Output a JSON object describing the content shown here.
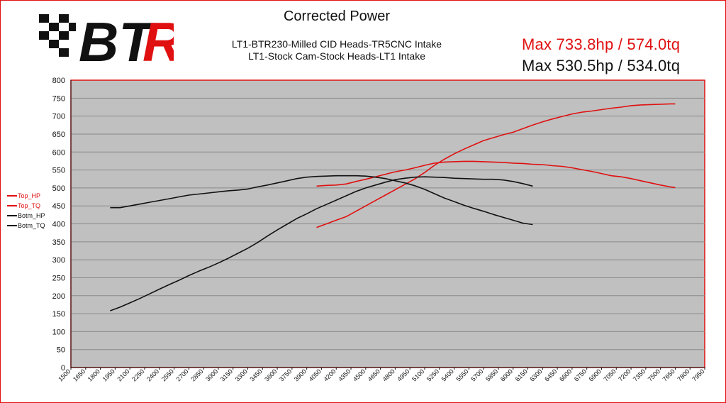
{
  "header": {
    "title": "Corrected Power",
    "subtitle_1": "LT1-BTR230-Milled CID Heads-TR5CNC Intake",
    "subtitle_2": "LT1-Stock Cam-Stock Heads-LT1 Intake",
    "max_top": "Max 733.8hp / 574.0tq",
    "max_bottom": "Max 530.5hp / 534.0tq"
  },
  "logo": {
    "text": "BTR",
    "colors": {
      "black": "#111111",
      "red": "#e01010"
    }
  },
  "colors": {
    "red": "#e01010",
    "black": "#111111",
    "plot_bg": "#c0c0c0",
    "grid": "#8a8a8a"
  },
  "chart_data": {
    "type": "line",
    "title": "Corrected Power",
    "xlabel": "",
    "ylabel": "",
    "xlim": [
      1500,
      7950
    ],
    "ylim": [
      0,
      800
    ],
    "x_ticks": [
      1500,
      1650,
      1800,
      1950,
      2100,
      2250,
      2400,
      2550,
      2700,
      2850,
      3000,
      3150,
      3300,
      3450,
      3600,
      3750,
      3900,
      4050,
      4200,
      4350,
      4500,
      4650,
      4800,
      4950,
      5100,
      5250,
      5400,
      5550,
      5700,
      5850,
      6000,
      6150,
      6300,
      6450,
      6600,
      6750,
      6900,
      7050,
      7200,
      7350,
      7500,
      7650,
      7800,
      7950
    ],
    "y_ticks": [
      0,
      50,
      100,
      150,
      200,
      250,
      300,
      350,
      400,
      450,
      500,
      550,
      600,
      650,
      700,
      750,
      800
    ],
    "grid": true,
    "legend_position": "left",
    "series": [
      {
        "name": "Top_HP",
        "color": "#e01010",
        "points": [
          [
            4000,
            390
          ],
          [
            4100,
            400
          ],
          [
            4200,
            410
          ],
          [
            4300,
            420
          ],
          [
            4400,
            435
          ],
          [
            4500,
            450
          ],
          [
            4600,
            465
          ],
          [
            4700,
            480
          ],
          [
            4800,
            495
          ],
          [
            4900,
            510
          ],
          [
            5000,
            525
          ],
          [
            5100,
            543
          ],
          [
            5200,
            563
          ],
          [
            5300,
            580
          ],
          [
            5400,
            595
          ],
          [
            5500,
            608
          ],
          [
            5600,
            620
          ],
          [
            5700,
            632
          ],
          [
            5800,
            640
          ],
          [
            5900,
            648
          ],
          [
            6000,
            655
          ],
          [
            6100,
            665
          ],
          [
            6200,
            675
          ],
          [
            6300,
            684
          ],
          [
            6400,
            692
          ],
          [
            6500,
            699
          ],
          [
            6600,
            706
          ],
          [
            6700,
            711
          ],
          [
            6800,
            714
          ],
          [
            6900,
            718
          ],
          [
            7000,
            722
          ],
          [
            7100,
            725
          ],
          [
            7200,
            729
          ],
          [
            7300,
            731
          ],
          [
            7400,
            732
          ],
          [
            7500,
            733
          ],
          [
            7600,
            734
          ],
          [
            7650,
            734
          ]
        ]
      },
      {
        "name": "Top_TQ",
        "color": "#e01010",
        "points": [
          [
            4000,
            505
          ],
          [
            4100,
            507
          ],
          [
            4200,
            508
          ],
          [
            4300,
            511
          ],
          [
            4400,
            518
          ],
          [
            4500,
            524
          ],
          [
            4600,
            531
          ],
          [
            4700,
            538
          ],
          [
            4800,
            545
          ],
          [
            4900,
            550
          ],
          [
            5000,
            556
          ],
          [
            5100,
            563
          ],
          [
            5200,
            569
          ],
          [
            5300,
            572
          ],
          [
            5400,
            573
          ],
          [
            5500,
            574
          ],
          [
            5600,
            574
          ],
          [
            5700,
            573
          ],
          [
            5800,
            572
          ],
          [
            5900,
            571
          ],
          [
            6000,
            569
          ],
          [
            6100,
            568
          ],
          [
            6200,
            566
          ],
          [
            6300,
            565
          ],
          [
            6400,
            562
          ],
          [
            6500,
            560
          ],
          [
            6600,
            556
          ],
          [
            6700,
            551
          ],
          [
            6800,
            546
          ],
          [
            6900,
            540
          ],
          [
            7000,
            534
          ],
          [
            7100,
            531
          ],
          [
            7200,
            526
          ],
          [
            7300,
            520
          ],
          [
            7400,
            514
          ],
          [
            7500,
            508
          ],
          [
            7600,
            503
          ],
          [
            7650,
            501
          ]
        ]
      },
      {
        "name": "Botm_HP",
        "color": "#111111",
        "points": [
          [
            1900,
            158
          ],
          [
            2000,
            168
          ],
          [
            2100,
            180
          ],
          [
            2200,
            192
          ],
          [
            2300,
            205
          ],
          [
            2400,
            218
          ],
          [
            2500,
            231
          ],
          [
            2600,
            243
          ],
          [
            2700,
            256
          ],
          [
            2800,
            268
          ],
          [
            2900,
            279
          ],
          [
            3000,
            291
          ],
          [
            3100,
            304
          ],
          [
            3200,
            318
          ],
          [
            3300,
            332
          ],
          [
            3400,
            348
          ],
          [
            3500,
            366
          ],
          [
            3600,
            383
          ],
          [
            3700,
            399
          ],
          [
            3800,
            415
          ],
          [
            3900,
            428
          ],
          [
            4000,
            442
          ],
          [
            4100,
            454
          ],
          [
            4200,
            466
          ],
          [
            4300,
            478
          ],
          [
            4400,
            490
          ],
          [
            4500,
            500
          ],
          [
            4600,
            508
          ],
          [
            4700,
            516
          ],
          [
            4800,
            523
          ],
          [
            4900,
            527
          ],
          [
            5000,
            530
          ],
          [
            5100,
            531
          ],
          [
            5200,
            530
          ],
          [
            5300,
            529
          ],
          [
            5400,
            527
          ],
          [
            5500,
            526
          ],
          [
            5600,
            525
          ],
          [
            5700,
            524
          ],
          [
            5800,
            524
          ],
          [
            5900,
            522
          ],
          [
            6000,
            518
          ],
          [
            6100,
            512
          ],
          [
            6200,
            505
          ]
        ]
      },
      {
        "name": "Botm_TQ",
        "color": "#111111",
        "points": [
          [
            1900,
            445
          ],
          [
            2000,
            445
          ],
          [
            2100,
            450
          ],
          [
            2200,
            455
          ],
          [
            2300,
            460
          ],
          [
            2400,
            465
          ],
          [
            2500,
            470
          ],
          [
            2600,
            475
          ],
          [
            2700,
            480
          ],
          [
            2800,
            483
          ],
          [
            2900,
            486
          ],
          [
            3000,
            489
          ],
          [
            3100,
            492
          ],
          [
            3200,
            494
          ],
          [
            3300,
            497
          ],
          [
            3400,
            503
          ],
          [
            3500,
            508
          ],
          [
            3600,
            514
          ],
          [
            3700,
            520
          ],
          [
            3800,
            526
          ],
          [
            3900,
            530
          ],
          [
            4000,
            532
          ],
          [
            4100,
            533
          ],
          [
            4200,
            534
          ],
          [
            4300,
            534
          ],
          [
            4400,
            534
          ],
          [
            4500,
            533
          ],
          [
            4600,
            530
          ],
          [
            4700,
            526
          ],
          [
            4800,
            520
          ],
          [
            4900,
            514
          ],
          [
            5000,
            506
          ],
          [
            5100,
            496
          ],
          [
            5200,
            484
          ],
          [
            5300,
            472
          ],
          [
            5400,
            462
          ],
          [
            5500,
            452
          ],
          [
            5600,
            443
          ],
          [
            5700,
            435
          ],
          [
            5800,
            426
          ],
          [
            5900,
            418
          ],
          [
            6000,
            410
          ],
          [
            6100,
            402
          ],
          [
            6200,
            398
          ]
        ]
      }
    ]
  }
}
